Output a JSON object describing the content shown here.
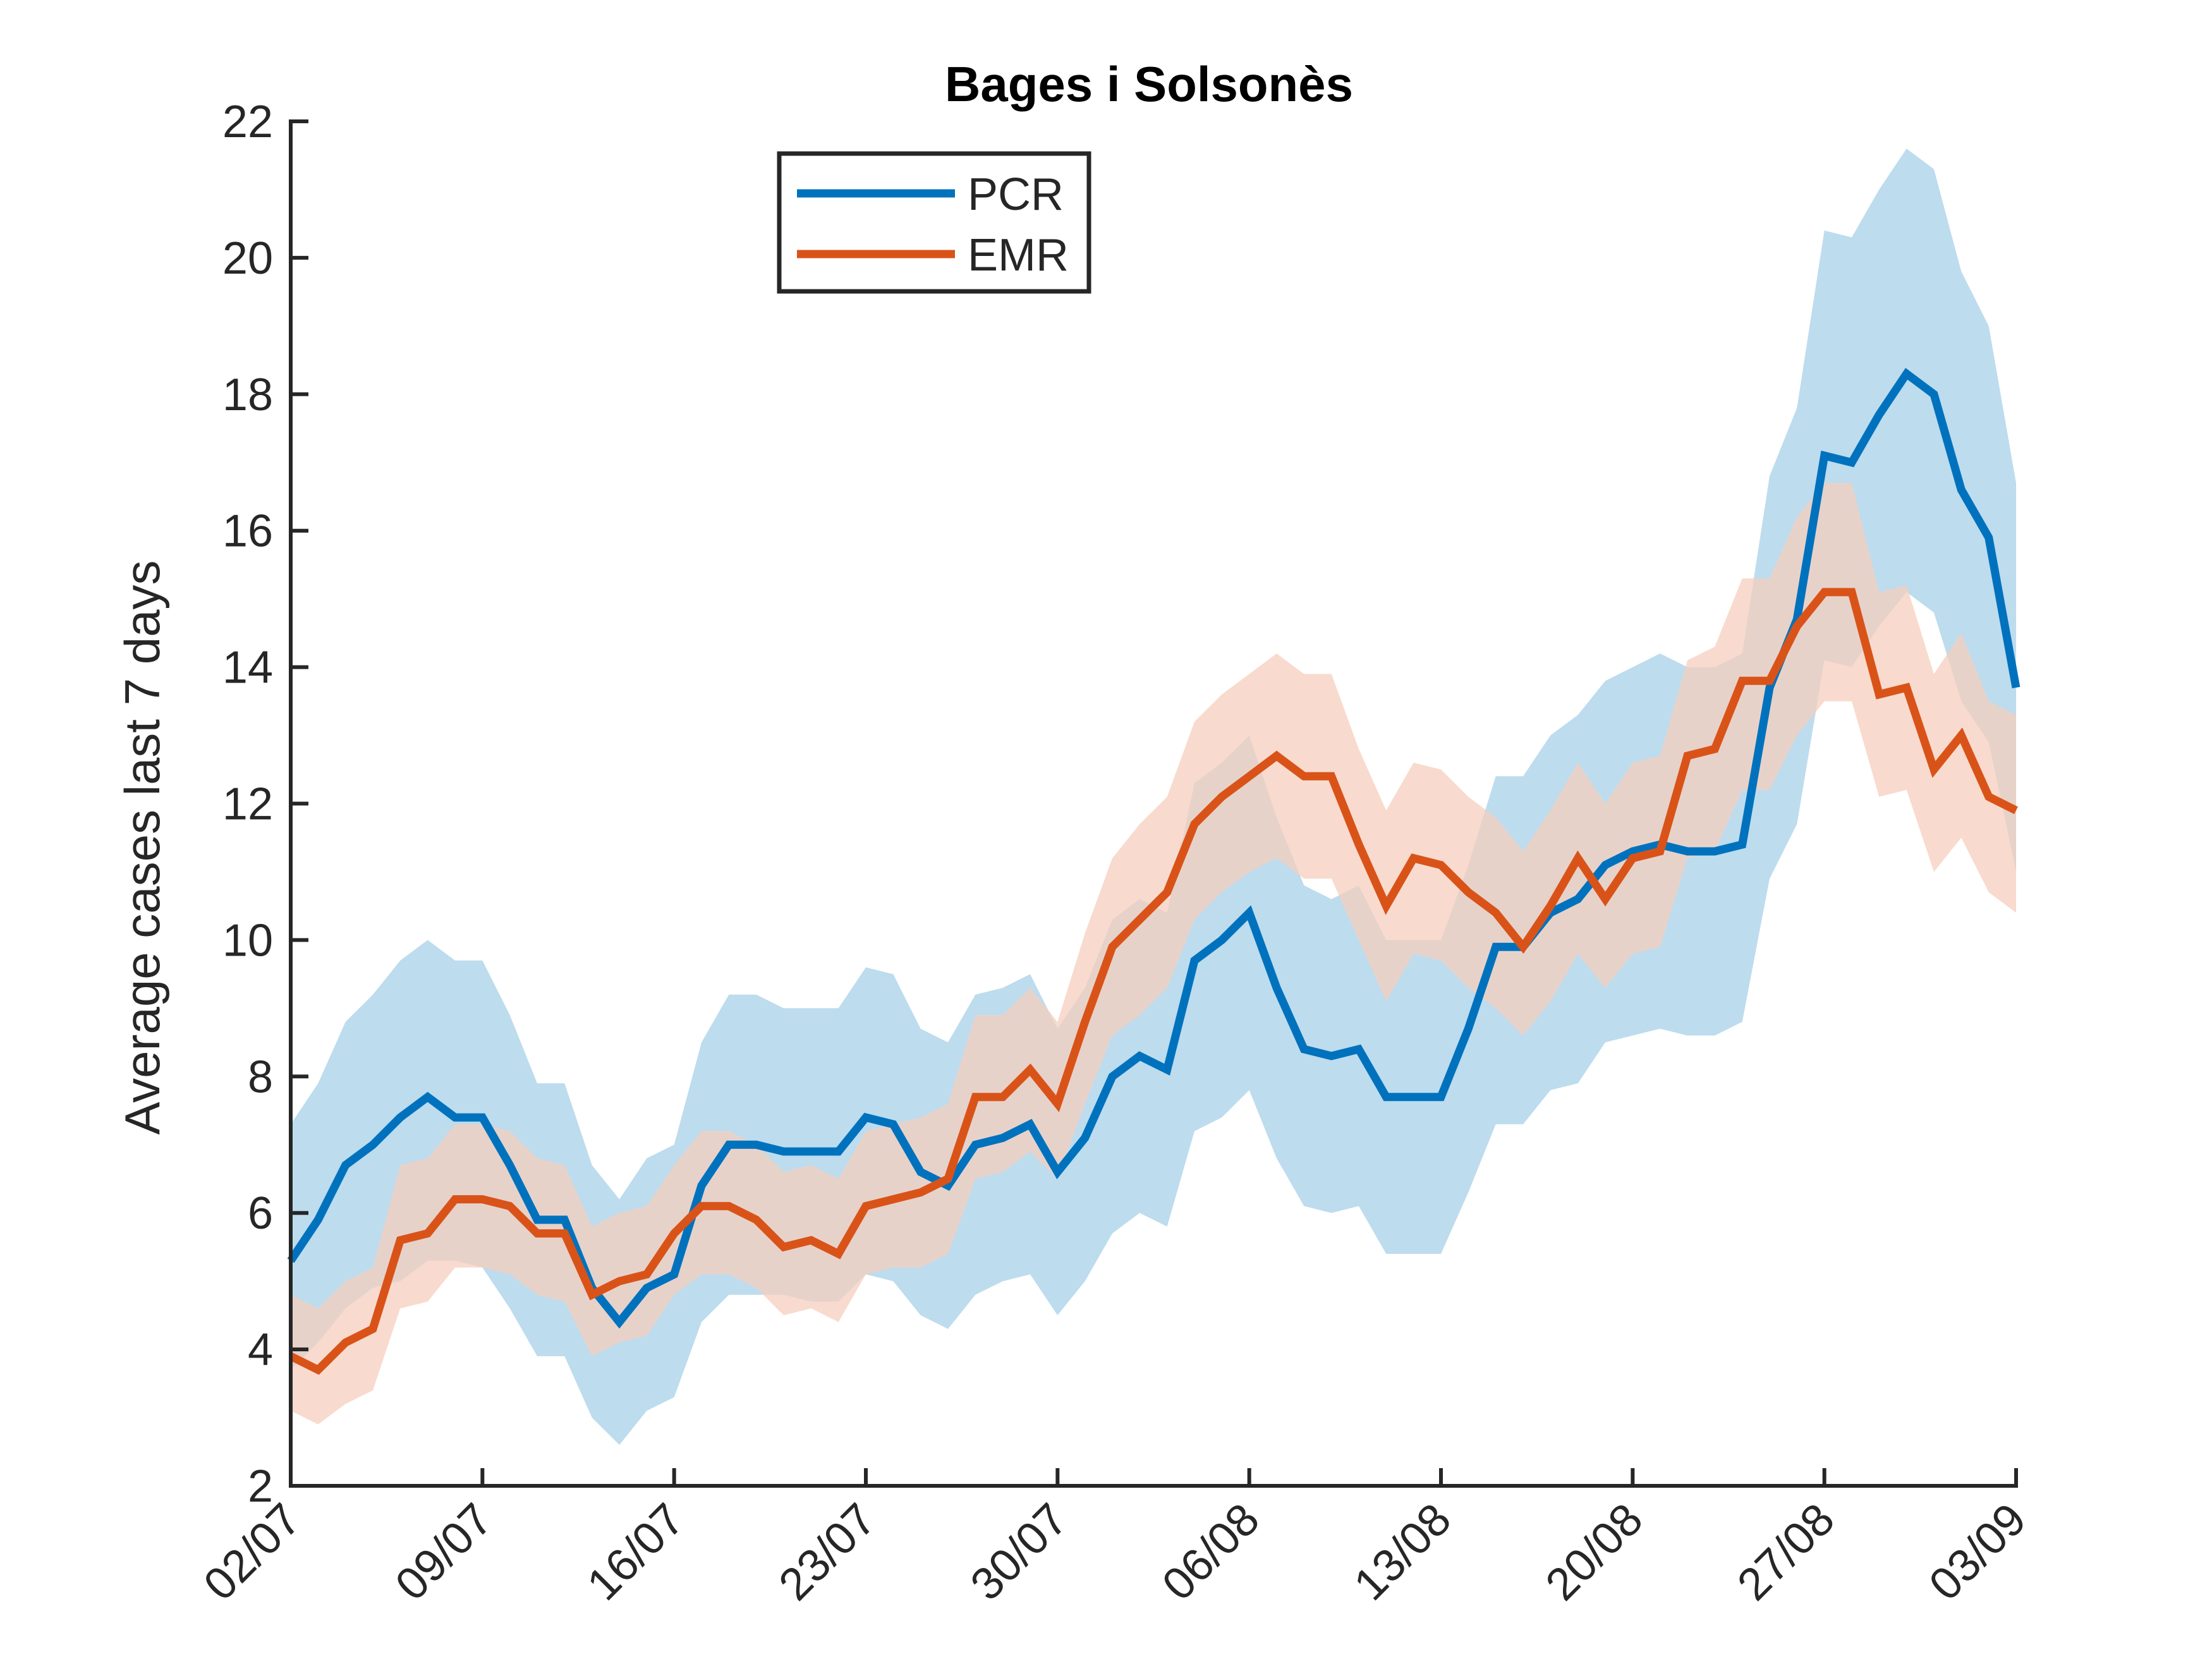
{
  "chart_data": {
    "type": "line",
    "title": "Bages i Solsonès",
    "xlabel": "",
    "ylabel": "Average cases last 7 days",
    "ylim": [
      2,
      22
    ],
    "yticks": [
      2,
      4,
      6,
      8,
      10,
      12,
      14,
      16,
      18,
      20,
      22
    ],
    "xticks": [
      "02/07",
      "09/07",
      "16/07",
      "23/07",
      "30/07",
      "06/08",
      "13/08",
      "20/08",
      "27/08",
      "03/09"
    ],
    "x_start": "02/07",
    "x_end": "03/09",
    "grid": false,
    "legend_position": "top-left",
    "series": [
      {
        "name": "PCR",
        "color": "#0072BD",
        "band_color": "#BDDCEE",
        "values": [
          5.3,
          5.9,
          6.7,
          7.0,
          7.4,
          7.7,
          7.4,
          7.4,
          6.7,
          5.9,
          5.9,
          4.9,
          4.4,
          4.9,
          5.1,
          6.4,
          7.0,
          7.0,
          6.9,
          6.9,
          6.9,
          7.4,
          7.3,
          6.6,
          6.4,
          7.0,
          7.1,
          7.3,
          6.6,
          7.1,
          8.0,
          8.3,
          8.1,
          9.7,
          10.0,
          10.4,
          9.3,
          8.4,
          8.3,
          8.4,
          7.7,
          7.7,
          7.7,
          8.7,
          9.9,
          9.9,
          10.4,
          10.6,
          11.1,
          11.3,
          11.4,
          11.3,
          11.3,
          11.4,
          13.7,
          14.7,
          17.1,
          17.0,
          17.7,
          18.3,
          18.0,
          16.6,
          15.9,
          13.7
        ],
        "lower": [
          3.7,
          4.1,
          4.6,
          4.9,
          5.0,
          5.3,
          5.3,
          5.2,
          4.6,
          3.9,
          3.9,
          3.0,
          2.6,
          3.1,
          3.3,
          4.4,
          4.8,
          4.8,
          4.8,
          4.7,
          4.7,
          5.1,
          5.0,
          4.5,
          4.3,
          4.8,
          5.0,
          5.1,
          4.5,
          5.0,
          5.7,
          6.0,
          5.8,
          7.2,
          7.4,
          7.8,
          6.8,
          6.1,
          6.0,
          6.1,
          5.4,
          5.4,
          5.4,
          6.3,
          7.3,
          7.3,
          7.8,
          7.9,
          8.5,
          8.6,
          8.7,
          8.6,
          8.6,
          8.8,
          10.9,
          11.7,
          14.1,
          14.0,
          14.6,
          15.1,
          14.8,
          13.5,
          12.9,
          11.0
        ],
        "upper": [
          7.3,
          7.9,
          8.8,
          9.2,
          9.7,
          10.0,
          9.7,
          9.7,
          8.9,
          7.9,
          7.9,
          6.7,
          6.2,
          6.8,
          7.0,
          8.5,
          9.2,
          9.2,
          9.0,
          9.0,
          9.0,
          9.6,
          9.5,
          8.7,
          8.5,
          9.2,
          9.3,
          9.5,
          8.7,
          9.3,
          10.3,
          10.6,
          10.4,
          12.3,
          12.6,
          13.0,
          11.8,
          10.8,
          10.6,
          10.8,
          10.0,
          10.0,
          10.0,
          11.1,
          12.4,
          12.4,
          13.0,
          13.3,
          13.8,
          14.0,
          14.2,
          14.0,
          14.0,
          14.2,
          16.8,
          17.8,
          20.4,
          20.3,
          21.0,
          21.6,
          21.3,
          19.8,
          19.0,
          16.7
        ]
      },
      {
        "name": "EMR",
        "color": "#D95319",
        "band_color": "#F5CFBE",
        "values": [
          3.9,
          3.7,
          4.1,
          4.3,
          5.6,
          5.7,
          6.2,
          6.2,
          6.1,
          5.7,
          5.7,
          4.8,
          5.0,
          5.1,
          5.7,
          6.1,
          6.1,
          5.9,
          5.5,
          5.6,
          5.4,
          6.1,
          6.2,
          6.3,
          6.5,
          7.7,
          7.7,
          8.1,
          7.6,
          8.8,
          9.9,
          10.3,
          10.7,
          11.7,
          12.1,
          12.4,
          12.7,
          12.4,
          12.4,
          11.4,
          10.5,
          11.2,
          11.1,
          10.7,
          10.4,
          9.9,
          10.5,
          11.2,
          10.6,
          11.2,
          11.3,
          12.7,
          12.8,
          13.8,
          13.8,
          14.6,
          15.1,
          15.1,
          13.6,
          13.7,
          12.5,
          13.0,
          12.1,
          11.9
        ],
        "lower": [
          3.1,
          2.9,
          3.2,
          3.4,
          4.6,
          4.7,
          5.2,
          5.2,
          5.1,
          4.8,
          4.7,
          3.9,
          4.1,
          4.2,
          4.8,
          5.1,
          5.1,
          4.9,
          4.5,
          4.6,
          4.4,
          5.1,
          5.2,
          5.2,
          5.4,
          6.5,
          6.6,
          6.9,
          6.5,
          7.6,
          8.6,
          8.9,
          9.3,
          10.3,
          10.7,
          11.0,
          11.2,
          10.9,
          10.9,
          10.0,
          9.1,
          9.8,
          9.7,
          9.3,
          9.0,
          8.6,
          9.1,
          9.8,
          9.3,
          9.8,
          9.9,
          11.2,
          11.3,
          12.2,
          12.2,
          13.0,
          13.5,
          13.5,
          12.1,
          12.2,
          11.0,
          11.5,
          10.7,
          10.4
        ],
        "upper": [
          4.8,
          4.6,
          5.0,
          5.2,
          6.7,
          6.8,
          7.3,
          7.3,
          7.2,
          6.8,
          6.7,
          5.8,
          6.0,
          6.1,
          6.7,
          7.2,
          7.2,
          7.0,
          6.6,
          6.7,
          6.5,
          7.2,
          7.3,
          7.4,
          7.6,
          8.9,
          8.9,
          9.3,
          8.8,
          10.1,
          11.2,
          11.7,
          12.1,
          13.2,
          13.6,
          13.9,
          14.2,
          13.9,
          13.9,
          12.8,
          11.9,
          12.6,
          12.5,
          12.1,
          11.8,
          11.3,
          11.9,
          12.6,
          12.0,
          12.6,
          12.7,
          14.1,
          14.3,
          15.3,
          15.3,
          16.2,
          16.7,
          16.7,
          15.1,
          15.2,
          13.9,
          14.5,
          13.5,
          13.3
        ]
      }
    ]
  }
}
